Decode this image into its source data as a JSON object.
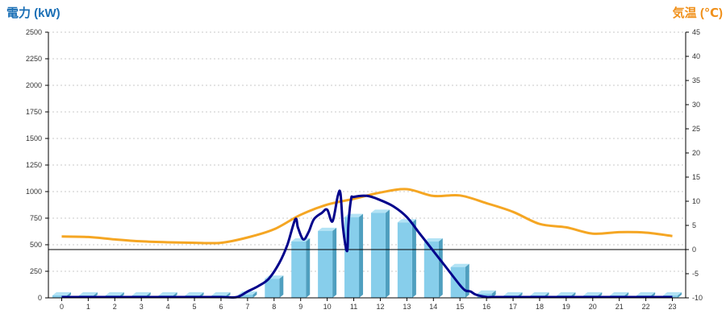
{
  "colors": {
    "power_axis_title": "#1a6fb5",
    "temp_axis_title": "#f0901a",
    "bar_front": "#87ceeb",
    "bar_side": "#4f9fbf",
    "bar_top": "#b3e3f5",
    "power_line": "#00008b",
    "temp_line": "#f5a623",
    "zero_temp_line": "#000000"
  },
  "chart_data": {
    "type": "bar",
    "title": "",
    "ylabel": "電力 (kW)",
    "y2label": "気温 (℃)",
    "xlabel": "",
    "categories": [
      "0",
      "1",
      "2",
      "3",
      "4",
      "5",
      "6",
      "7",
      "8",
      "9",
      "10",
      "11",
      "12",
      "13",
      "14",
      "15",
      "16",
      "17",
      "18",
      "19",
      "20",
      "21",
      "22",
      "23"
    ],
    "ylim": [
      0,
      2500
    ],
    "yticks": [
      0,
      250,
      500,
      750,
      1000,
      1250,
      1500,
      1750,
      2000,
      2250,
      2500
    ],
    "y2lim": [
      -10,
      45
    ],
    "y2ticks": [
      -10,
      -5,
      0,
      5,
      10,
      15,
      20,
      25,
      30,
      35,
      40,
      45
    ],
    "grid": true,
    "series": [
      {
        "kind": "bar",
        "axis": "left",
        "values": [
          0,
          0,
          0,
          0,
          0,
          0,
          0,
          30,
          180,
          530,
          630,
          760,
          800,
          710,
          530,
          290,
          40,
          0,
          0,
          0,
          0,
          0,
          0,
          0
        ]
      },
      {
        "kind": "line",
        "axis": "left",
        "x": [
          0,
          1,
          2,
          3,
          4,
          5,
          6,
          6.6,
          7,
          7.4,
          7.8,
          8.2,
          8.5,
          8.8,
          8.9,
          9.1,
          9.3,
          9.5,
          9.8,
          10.0,
          10.2,
          10.4,
          10.5,
          10.6,
          10.75,
          10.8,
          10.9,
          11.0,
          11.5,
          12,
          12.5,
          13,
          13.5,
          14,
          14.5,
          15,
          15.2,
          15.4,
          15.6,
          16,
          16.2,
          17,
          18,
          19,
          20,
          21,
          22,
          23
        ],
        "values": [
          0,
          0,
          0,
          0,
          0,
          0,
          0,
          0,
          60,
          110,
          180,
          330,
          500,
          740,
          660,
          550,
          620,
          740,
          800,
          830,
          720,
          960,
          980,
          650,
          440,
          700,
          930,
          950,
          960,
          920,
          860,
          760,
          600,
          440,
          280,
          120,
          70,
          60,
          30,
          0,
          0,
          0,
          0,
          0,
          0,
          0,
          0,
          0
        ]
      },
      {
        "kind": "line",
        "axis": "right",
        "x": [
          0,
          1,
          2,
          3,
          4,
          5,
          6,
          7,
          8,
          9,
          10,
          11,
          12,
          13,
          14,
          15,
          16,
          17,
          18,
          19,
          20,
          21,
          22,
          23
        ],
        "values": [
          2.7,
          2.6,
          2.1,
          1.7,
          1.5,
          1.4,
          1.4,
          2.5,
          4.2,
          7.2,
          9.3,
          10.5,
          11.8,
          12.5,
          11.1,
          11.2,
          9.6,
          7.8,
          5.3,
          4.6,
          3.3,
          3.6,
          3.5,
          2.8
        ]
      }
    ]
  }
}
